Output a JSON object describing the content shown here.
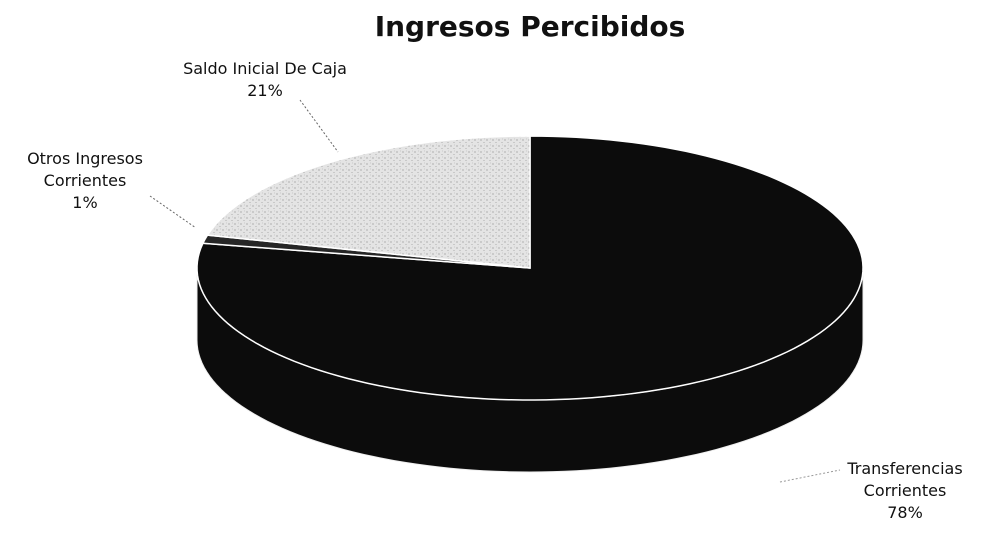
{
  "chart_data": {
    "type": "pie3d",
    "title": "Ingresos Percibidos",
    "categories": [
      "Transferencias Corrientes",
      "Otros Ingresos Corrientes",
      "Saldo Inicial De Caja"
    ],
    "values": [
      78,
      1,
      21
    ],
    "value_labels": [
      "78%",
      "1%",
      "21%"
    ],
    "colors": [
      "#0c0c0c",
      "#262626",
      "#dedede"
    ]
  }
}
